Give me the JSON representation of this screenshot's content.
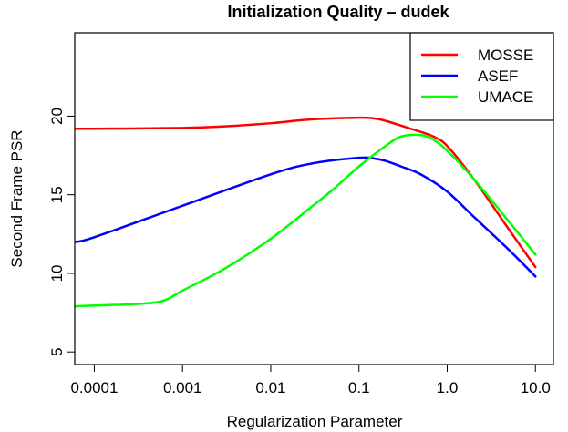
{
  "chart_data": {
    "type": "line",
    "title": "Initialization Quality – dudek",
    "xlabel": "Regularization Parameter",
    "ylabel": "Second Frame PSR",
    "x_scale": "log",
    "xlim": [
      6e-05,
      16
    ],
    "ylim": [
      4.2,
      25.3
    ],
    "x_ticks": [
      0.0001,
      0.001,
      0.01,
      0.1,
      1.0,
      10.0
    ],
    "x_tick_labels": [
      "0.0001",
      "0.001",
      "0.01",
      "0.1",
      "1.0",
      "10.0"
    ],
    "y_ticks": [
      5,
      10,
      15,
      20
    ],
    "y_tick_labels": [
      "5",
      "10",
      "15",
      "20"
    ],
    "legend_position": "top-right",
    "grid": false,
    "series": [
      {
        "name": "MOSSE",
        "color": "#ff0000",
        "x": [
          6e-05,
          0.0001,
          0.001,
          0.003,
          0.01,
          0.03,
          0.1,
          0.15,
          0.2,
          0.3,
          0.5,
          0.7,
          1.0,
          2.0,
          5.0,
          10.0
        ],
        "y": [
          19.2,
          19.2,
          19.25,
          19.35,
          19.55,
          19.8,
          19.9,
          19.85,
          19.7,
          19.4,
          19.0,
          18.7,
          18.1,
          16.0,
          12.8,
          10.4
        ]
      },
      {
        "name": "ASEF",
        "color": "#0000ff",
        "x": [
          6e-05,
          0.0001,
          0.001,
          0.01,
          0.03,
          0.1,
          0.15,
          0.2,
          0.3,
          0.5,
          1.0,
          2.0,
          5.0,
          10.0
        ],
        "y": [
          12.0,
          12.3,
          14.3,
          16.3,
          17.0,
          17.35,
          17.3,
          17.15,
          16.8,
          16.3,
          15.2,
          13.6,
          11.5,
          9.8
        ]
      },
      {
        "name": "UMACE",
        "color": "#00ff00",
        "x": [
          6e-05,
          0.0001,
          0.0003,
          0.0006,
          0.001,
          0.003,
          0.01,
          0.03,
          0.05,
          0.1,
          0.2,
          0.3,
          0.5,
          0.7,
          1.0,
          2.0,
          5.0,
          10.0
        ],
        "y": [
          7.9,
          7.95,
          8.05,
          8.25,
          8.9,
          10.3,
          12.2,
          14.3,
          15.3,
          16.8,
          18.1,
          18.7,
          18.8,
          18.5,
          17.8,
          16.0,
          13.3,
          11.2
        ]
      }
    ]
  }
}
